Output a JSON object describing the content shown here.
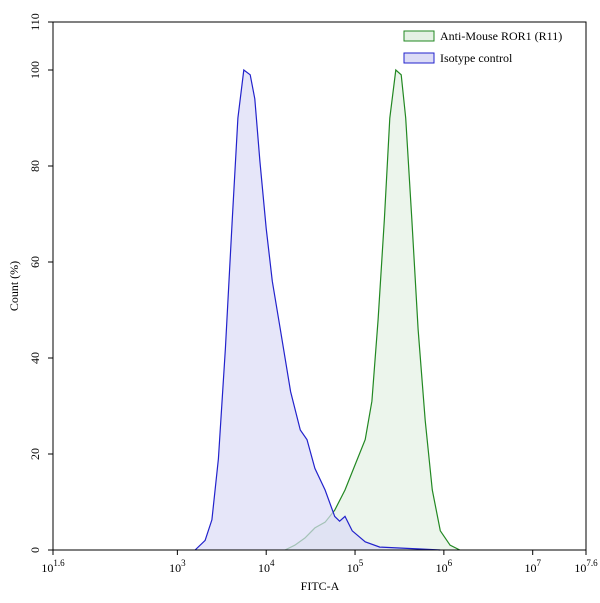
{
  "chart_data": {
    "type": "area",
    "x_label": "FITC-A",
    "y_label": "Count (%)",
    "x_scale": "log",
    "xlim": [
      39.81,
      39810717
    ],
    "xticks": [
      {
        "value": 39.81,
        "label": "10^1.6"
      },
      {
        "value": 1000,
        "label": "10^3"
      },
      {
        "value": 10000,
        "label": "10^4"
      },
      {
        "value": 100000,
        "label": "10^5"
      },
      {
        "value": 1000000,
        "label": "10^6"
      },
      {
        "value": 10000000,
        "label": "10^7"
      },
      {
        "value": 39810717,
        "label": "10^7.6"
      }
    ],
    "ylim": [
      0,
      110
    ],
    "yticks": [
      0,
      20,
      40,
      60,
      80,
      100,
      110
    ],
    "legend": "upper right",
    "series": [
      {
        "name": "Anti-Mouse ROR1 (R11)",
        "color": "#228822",
        "fill": "#e4f1e4",
        "x": [
          16300,
          21000,
          27300,
          35300,
          46000,
          59000,
          77000,
          100000,
          130000,
          155000,
          182000,
          214000,
          246000,
          288000,
          331000,
          372000,
          436000,
          513000,
          617000,
          741000,
          912000,
          1175000,
          1510000
        ],
        "values": [
          0,
          1,
          2.5,
          4.6,
          5.8,
          8.3,
          12.5,
          17.7,
          23,
          31,
          48,
          69,
          90,
          100,
          99,
          90,
          69,
          46,
          27,
          12.5,
          4,
          1,
          0
        ]
      },
      {
        "name": "Isotype control",
        "color": "#2222cc",
        "fill": "#dcdcf6",
        "x": [
          1585,
          2050,
          2450,
          2900,
          3470,
          4150,
          4800,
          5600,
          6600,
          7450,
          8500,
          10000,
          11700,
          14400,
          18800,
          24200,
          28800,
          35300,
          46000,
          59000,
          67000,
          77000,
          93000,
          130000,
          190000,
          540000,
          910000
        ],
        "values": [
          0,
          2,
          6.3,
          19,
          42,
          69,
          90,
          100,
          99,
          94,
          81,
          67,
          56,
          46,
          33,
          25,
          23,
          17,
          12.5,
          7,
          6,
          7,
          4,
          1.7,
          0.6,
          0.2,
          0
        ]
      }
    ]
  }
}
